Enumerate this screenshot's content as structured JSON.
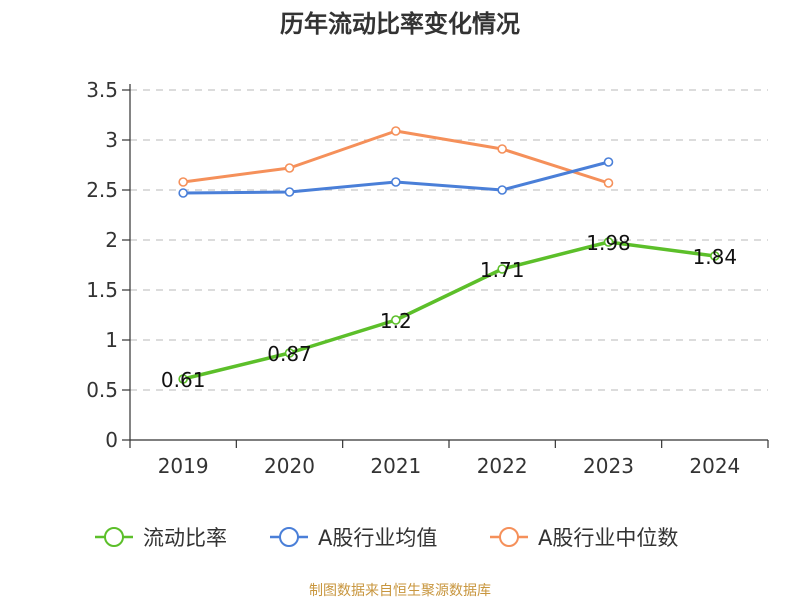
{
  "chart_data": {
    "type": "line",
    "title": "历年流动比率变化情况",
    "categories": [
      "2019",
      "2020",
      "2021",
      "2022",
      "2023",
      "2024"
    ],
    "ylim": [
      0,
      3.5
    ],
    "yticks": [
      "0",
      "0.5",
      "1",
      "1.5",
      "2",
      "2.5",
      "3",
      "3.5"
    ],
    "grid": true,
    "legend_position": "bottom",
    "series": [
      {
        "name": "流动比率",
        "color": "#5cbf2a",
        "values": [
          0.61,
          0.87,
          1.2,
          1.71,
          1.98,
          1.84
        ],
        "labels": [
          "0.61",
          "0.87",
          "1.2",
          "1.71",
          "1.98",
          "1.84"
        ]
      },
      {
        "name": "A股行业均值",
        "color": "#4a7fd8",
        "values": [
          2.47,
          2.48,
          2.58,
          2.5,
          2.78,
          null
        ]
      },
      {
        "name": "A股行业中位数",
        "color": "#f5905a",
        "values": [
          2.58,
          2.72,
          3.09,
          2.91,
          2.57,
          null
        ]
      }
    ],
    "source": "制图数据来自恒生聚源数据库"
  }
}
